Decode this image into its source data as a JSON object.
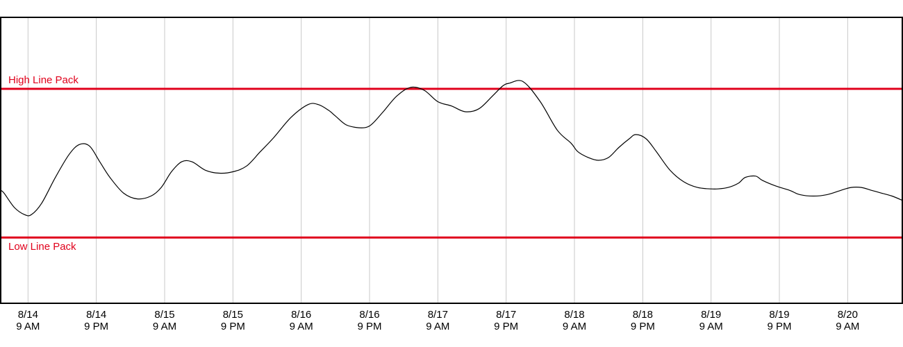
{
  "chart_data": {
    "type": "line",
    "title": "",
    "xlabel": "",
    "ylabel": "",
    "xlim": [
      3.6,
      16.8
    ],
    "ylim": [
      0,
      100
    ],
    "grid": {
      "vertical": true,
      "horizontal": false
    },
    "x_ticks": [
      {
        "value": 4,
        "date": "8/14",
        "time": "9 AM"
      },
      {
        "value": 5,
        "date": "8/14",
        "time": "9 PM"
      },
      {
        "value": 6,
        "date": "8/15",
        "time": "9 AM"
      },
      {
        "value": 7,
        "date": "8/15",
        "time": "9 PM"
      },
      {
        "value": 8,
        "date": "8/16",
        "time": "9 AM"
      },
      {
        "value": 9,
        "date": "8/16",
        "time": "9 PM"
      },
      {
        "value": 10,
        "date": "8/17",
        "time": "9 AM"
      },
      {
        "value": 11,
        "date": "8/17",
        "time": "9 PM"
      },
      {
        "value": 12,
        "date": "8/18",
        "time": "9 AM"
      },
      {
        "value": 13,
        "date": "8/18",
        "time": "9 PM"
      },
      {
        "value": 14,
        "date": "8/19",
        "time": "9 AM"
      },
      {
        "value": 15,
        "date": "8/19",
        "time": "9 PM"
      },
      {
        "value": 16,
        "date": "8/20",
        "time": "9 AM"
      }
    ],
    "reference_lines": [
      {
        "label": "High Line Pack",
        "value": 75,
        "color": "#e0001b"
      },
      {
        "label": "Low Line Pack",
        "value": 23,
        "color": "#e0001b"
      }
    ],
    "series": [
      {
        "color": "#000000",
        "x": [
          3.6,
          3.65,
          3.8,
          3.95,
          4.05,
          4.2,
          4.4,
          4.6,
          4.75,
          4.9,
          5.05,
          5.2,
          5.4,
          5.6,
          5.8,
          5.95,
          6.1,
          6.25,
          6.4,
          6.6,
          6.8,
          7.0,
          7.2,
          7.4,
          7.6,
          7.85,
          8.1,
          8.25,
          8.4,
          8.5,
          8.65,
          8.8,
          8.95,
          9.05,
          9.2,
          9.4,
          9.6,
          9.8,
          10.0,
          10.2,
          10.4,
          10.6,
          10.8,
          10.95,
          11.05,
          11.25,
          11.5,
          11.75,
          11.95,
          12.05,
          12.2,
          12.35,
          12.5,
          12.65,
          12.8,
          12.9,
          13.05,
          13.2,
          13.4,
          13.6,
          13.8,
          14.0,
          14.1,
          14.25,
          14.4,
          14.5,
          14.65,
          14.75,
          14.95,
          15.15,
          15.3,
          15.5,
          15.7,
          15.9,
          16.05,
          16.2,
          16.35,
          16.5,
          16.65,
          16.8
        ],
        "y": [
          39.5,
          38.5,
          33.5,
          31.0,
          31.0,
          35.0,
          44.0,
          52.0,
          55.5,
          55.0,
          49.5,
          44.0,
          38.5,
          36.5,
          37.5,
          40.5,
          46.0,
          49.5,
          49.5,
          46.5,
          45.5,
          46.0,
          48.0,
          53.0,
          58.0,
          65.0,
          69.5,
          69.5,
          67.5,
          65.5,
          62.5,
          61.5,
          61.5,
          63.0,
          67.0,
          72.5,
          75.5,
          74.5,
          70.5,
          69.0,
          67.0,
          68.0,
          72.5,
          76.0,
          77.0,
          77.5,
          70.5,
          60.5,
          56.0,
          53.0,
          51.0,
          50.0,
          51.0,
          54.5,
          57.5,
          59.0,
          57.5,
          53.0,
          46.5,
          42.5,
          40.5,
          40.0,
          40.0,
          40.5,
          42.0,
          44.0,
          44.5,
          43.0,
          41.0,
          39.5,
          38.0,
          37.5,
          38.0,
          39.5,
          40.5,
          40.5,
          39.5,
          38.5,
          37.5,
          36.0
        ]
      }
    ]
  }
}
